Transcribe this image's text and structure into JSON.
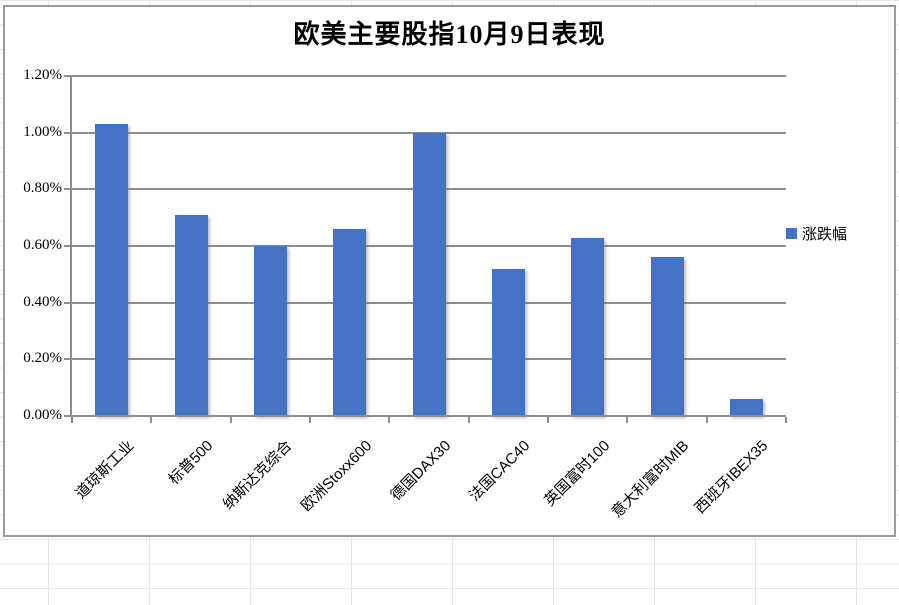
{
  "chart_data": {
    "type": "bar",
    "title": "欧美主要股指10月9日表现",
    "categories": [
      "道琼斯工业",
      "标普500",
      "纳斯达克综合",
      "欧洲Stoxx600",
      "德国DAX30",
      "法国CAC40",
      "英国富时100",
      "意大利富时MIB",
      "西班牙IBEX35"
    ],
    "series": [
      {
        "name": "涨跌幅",
        "values": [
          1.03,
          0.71,
          0.6,
          0.66,
          1.0,
          0.52,
          0.63,
          0.56,
          0.06
        ]
      }
    ],
    "values_unit": "%",
    "xlabel": "",
    "ylabel": "",
    "ylim": [
      0,
      1.2
    ],
    "ytick_step": 0.2,
    "ytick_labels": [
      "0.00%",
      "0.20%",
      "0.40%",
      "0.60%",
      "0.80%",
      "1.00%",
      "1.20%"
    ],
    "grid": "horizontal",
    "legend_position": "right",
    "colors": {
      "bar": "#4472C4",
      "gridline": "#8e8e8e",
      "frame_border": "#9b9b9b",
      "text": "#000000",
      "background": "#ffffff"
    }
  }
}
